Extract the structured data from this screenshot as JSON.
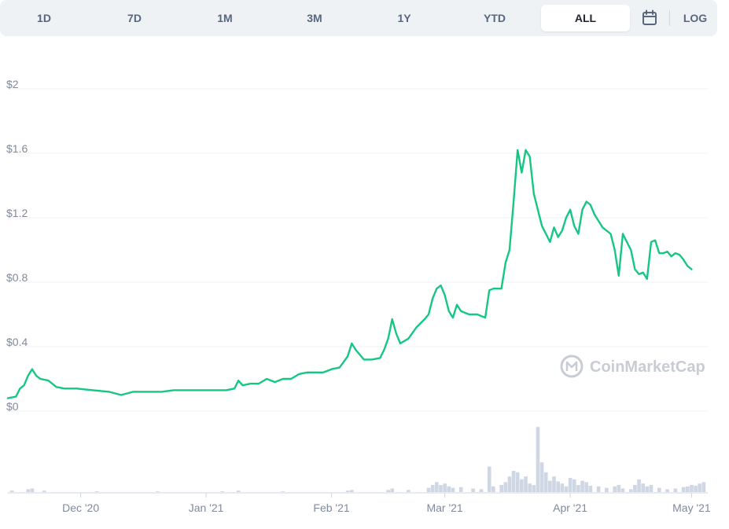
{
  "toolbar": {
    "ranges": [
      "1D",
      "7D",
      "1M",
      "3M",
      "1Y",
      "YTD",
      "ALL"
    ],
    "active_range": "ALL",
    "calendar_icon": "calendar-icon",
    "log_label": "LOG"
  },
  "watermark": {
    "text": "CoinMarketCap",
    "icon": "coinmarketcap-logo-icon"
  },
  "colors": {
    "price_line": "#16c784",
    "volume_bars": "#cfd6e4",
    "grid": "#eff2f5",
    "axis_text": "#808a9d"
  },
  "chart_data": {
    "type": "line",
    "title": "",
    "xlabel": "",
    "ylabel": "",
    "y_axis_ticks": [
      "$0",
      "$0.4",
      "$0.8",
      "$1.2",
      "$1.6",
      "$2"
    ],
    "ylim": [
      0,
      2
    ],
    "x_axis_ticks": [
      "Dec '20",
      "Jan '21",
      "Feb '21",
      "Mar '21",
      "Apr '21",
      "May '21"
    ],
    "x_tick_dates": [
      "2020-12-01",
      "2021-01-01",
      "2021-02-01",
      "2021-03-01",
      "2021-04-01",
      "2021-05-01"
    ],
    "xlim": [
      "2020-11-13",
      "2021-05-05"
    ],
    "grid": true,
    "legend": "none",
    "series": [
      {
        "values": [
          [
            "2020-11-13",
            0.08
          ],
          [
            "2020-11-15",
            0.09
          ],
          [
            "2020-11-16",
            0.14
          ],
          [
            "2020-11-17",
            0.16
          ],
          [
            "2020-11-18",
            0.22
          ],
          [
            "2020-11-19",
            0.26
          ],
          [
            "2020-11-20",
            0.22
          ],
          [
            "2020-11-21",
            0.2
          ],
          [
            "2020-11-23",
            0.19
          ],
          [
            "2020-11-25",
            0.15
          ],
          [
            "2020-11-27",
            0.14
          ],
          [
            "2020-11-30",
            0.14
          ],
          [
            "2020-12-04",
            0.13
          ],
          [
            "2020-12-08",
            0.12
          ],
          [
            "2020-12-11",
            0.1
          ],
          [
            "2020-12-14",
            0.12
          ],
          [
            "2020-12-18",
            0.12
          ],
          [
            "2020-12-21",
            0.12
          ],
          [
            "2020-12-24",
            0.13
          ],
          [
            "2020-12-27",
            0.13
          ],
          [
            "2020-12-31",
            0.13
          ],
          [
            "2021-01-03",
            0.13
          ],
          [
            "2021-01-06",
            0.13
          ],
          [
            "2021-01-08",
            0.14
          ],
          [
            "2021-01-09",
            0.19
          ],
          [
            "2021-01-10",
            0.16
          ],
          [
            "2021-01-12",
            0.17
          ],
          [
            "2021-01-14",
            0.17
          ],
          [
            "2021-01-16",
            0.2
          ],
          [
            "2021-01-18",
            0.18
          ],
          [
            "2021-01-20",
            0.2
          ],
          [
            "2021-01-22",
            0.2
          ],
          [
            "2021-01-24",
            0.23
          ],
          [
            "2021-01-26",
            0.24
          ],
          [
            "2021-01-28",
            0.24
          ],
          [
            "2021-01-30",
            0.24
          ],
          [
            "2021-02-01",
            0.26
          ],
          [
            "2021-02-03",
            0.27
          ],
          [
            "2021-02-05",
            0.34
          ],
          [
            "2021-02-06",
            0.42
          ],
          [
            "2021-02-07",
            0.38
          ],
          [
            "2021-02-09",
            0.32
          ],
          [
            "2021-02-11",
            0.32
          ],
          [
            "2021-02-13",
            0.33
          ],
          [
            "2021-02-14",
            0.38
          ],
          [
            "2021-02-15",
            0.45
          ],
          [
            "2021-02-16",
            0.57
          ],
          [
            "2021-02-17",
            0.48
          ],
          [
            "2021-02-18",
            0.42
          ],
          [
            "2021-02-20",
            0.45
          ],
          [
            "2021-02-22",
            0.52
          ],
          [
            "2021-02-24",
            0.57
          ],
          [
            "2021-02-25",
            0.6
          ],
          [
            "2021-02-26",
            0.7
          ],
          [
            "2021-02-27",
            0.76
          ],
          [
            "2021-02-28",
            0.78
          ],
          [
            "2021-03-01",
            0.72
          ],
          [
            "2021-03-02",
            0.62
          ],
          [
            "2021-03-03",
            0.58
          ],
          [
            "2021-03-04",
            0.66
          ],
          [
            "2021-03-05",
            0.62
          ],
          [
            "2021-03-07",
            0.6
          ],
          [
            "2021-03-09",
            0.6
          ],
          [
            "2021-03-11",
            0.58
          ],
          [
            "2021-03-12",
            0.75
          ],
          [
            "2021-03-13",
            0.76
          ],
          [
            "2021-03-15",
            0.76
          ],
          [
            "2021-03-16",
            0.92
          ],
          [
            "2021-03-17",
            1.0
          ],
          [
            "2021-03-18",
            1.3
          ],
          [
            "2021-03-19",
            1.62
          ],
          [
            "2021-03-20",
            1.48
          ],
          [
            "2021-03-21",
            1.62
          ],
          [
            "2021-03-22",
            1.58
          ],
          [
            "2021-03-23",
            1.35
          ],
          [
            "2021-03-24",
            1.25
          ],
          [
            "2021-03-25",
            1.15
          ],
          [
            "2021-03-26",
            1.1
          ],
          [
            "2021-03-27",
            1.05
          ],
          [
            "2021-03-28",
            1.14
          ],
          [
            "2021-03-29",
            1.08
          ],
          [
            "2021-03-30",
            1.12
          ],
          [
            "2021-03-31",
            1.2
          ],
          [
            "2021-04-01",
            1.25
          ],
          [
            "2021-04-02",
            1.15
          ],
          [
            "2021-04-03",
            1.1
          ],
          [
            "2021-04-04",
            1.25
          ],
          [
            "2021-04-05",
            1.3
          ],
          [
            "2021-04-06",
            1.28
          ],
          [
            "2021-04-07",
            1.22
          ],
          [
            "2021-04-08",
            1.18
          ],
          [
            "2021-04-09",
            1.14
          ],
          [
            "2021-04-10",
            1.12
          ],
          [
            "2021-04-11",
            1.1
          ],
          [
            "2021-04-12",
            1.0
          ],
          [
            "2021-04-13",
            0.84
          ],
          [
            "2021-04-14",
            1.1
          ],
          [
            "2021-04-15",
            1.05
          ],
          [
            "2021-04-16",
            1.0
          ],
          [
            "2021-04-17",
            0.88
          ],
          [
            "2021-04-18",
            0.85
          ],
          [
            "2021-04-19",
            0.86
          ],
          [
            "2021-04-20",
            0.82
          ],
          [
            "2021-04-21",
            1.05
          ],
          [
            "2021-04-22",
            1.06
          ],
          [
            "2021-04-23",
            0.98
          ],
          [
            "2021-04-24",
            0.98
          ],
          [
            "2021-04-25",
            0.99
          ],
          [
            "2021-04-26",
            0.96
          ],
          [
            "2021-04-27",
            0.98
          ],
          [
            "2021-04-28",
            0.97
          ],
          [
            "2021-04-29",
            0.94
          ],
          [
            "2021-04-30",
            0.9
          ],
          [
            "2021-05-01",
            0.88
          ]
        ]
      }
    ],
    "volume": {
      "values": [
        [
          "2020-11-14",
          0.02
        ],
        [
          "2020-11-18",
          0.04
        ],
        [
          "2020-11-19",
          0.05
        ],
        [
          "2020-11-22",
          0.02
        ],
        [
          "2020-12-05",
          0.01
        ],
        [
          "2020-12-20",
          0.01
        ],
        [
          "2021-01-05",
          0.01
        ],
        [
          "2021-01-09",
          0.02
        ],
        [
          "2021-01-20",
          0.01
        ],
        [
          "2021-02-05",
          0.02
        ],
        [
          "2021-02-06",
          0.03
        ],
        [
          "2021-02-15",
          0.03
        ],
        [
          "2021-02-16",
          0.05
        ],
        [
          "2021-02-20",
          0.03
        ],
        [
          "2021-02-25",
          0.06
        ],
        [
          "2021-02-26",
          0.1
        ],
        [
          "2021-02-27",
          0.14
        ],
        [
          "2021-02-28",
          0.1
        ],
        [
          "2021-03-01",
          0.12
        ],
        [
          "2021-03-02",
          0.08
        ],
        [
          "2021-03-03",
          0.06
        ],
        [
          "2021-03-05",
          0.07
        ],
        [
          "2021-03-08",
          0.05
        ],
        [
          "2021-03-10",
          0.04
        ],
        [
          "2021-03-12",
          0.36
        ],
        [
          "2021-03-13",
          0.08
        ],
        [
          "2021-03-15",
          0.1
        ],
        [
          "2021-03-16",
          0.14
        ],
        [
          "2021-03-17",
          0.22
        ],
        [
          "2021-03-18",
          0.3
        ],
        [
          "2021-03-19",
          0.28
        ],
        [
          "2021-03-20",
          0.18
        ],
        [
          "2021-03-21",
          0.22
        ],
        [
          "2021-03-22",
          0.12
        ],
        [
          "2021-03-23",
          0.1
        ],
        [
          "2021-03-24",
          0.92
        ],
        [
          "2021-03-25",
          0.42
        ],
        [
          "2021-03-26",
          0.28
        ],
        [
          "2021-03-27",
          0.16
        ],
        [
          "2021-03-28",
          0.22
        ],
        [
          "2021-03-29",
          0.15
        ],
        [
          "2021-03-30",
          0.12
        ],
        [
          "2021-03-31",
          0.08
        ],
        [
          "2021-04-01",
          0.2
        ],
        [
          "2021-04-02",
          0.18
        ],
        [
          "2021-04-03",
          0.1
        ],
        [
          "2021-04-04",
          0.16
        ],
        [
          "2021-04-05",
          0.14
        ],
        [
          "2021-04-06",
          0.09
        ],
        [
          "2021-04-08",
          0.08
        ],
        [
          "2021-04-10",
          0.06
        ],
        [
          "2021-04-12",
          0.08
        ],
        [
          "2021-04-13",
          0.1
        ],
        [
          "2021-04-14",
          0.05
        ],
        [
          "2021-04-16",
          0.04
        ],
        [
          "2021-04-17",
          0.1
        ],
        [
          "2021-04-18",
          0.18
        ],
        [
          "2021-04-19",
          0.12
        ],
        [
          "2021-04-20",
          0.08
        ],
        [
          "2021-04-21",
          0.1
        ],
        [
          "2021-04-23",
          0.06
        ],
        [
          "2021-04-25",
          0.04
        ],
        [
          "2021-04-27",
          0.05
        ],
        [
          "2021-04-29",
          0.07
        ],
        [
          "2021-04-30",
          0.08
        ],
        [
          "2021-05-01",
          0.1
        ],
        [
          "2021-05-02",
          0.09
        ],
        [
          "2021-05-03",
          0.12
        ],
        [
          "2021-05-04",
          0.14
        ]
      ]
    }
  }
}
